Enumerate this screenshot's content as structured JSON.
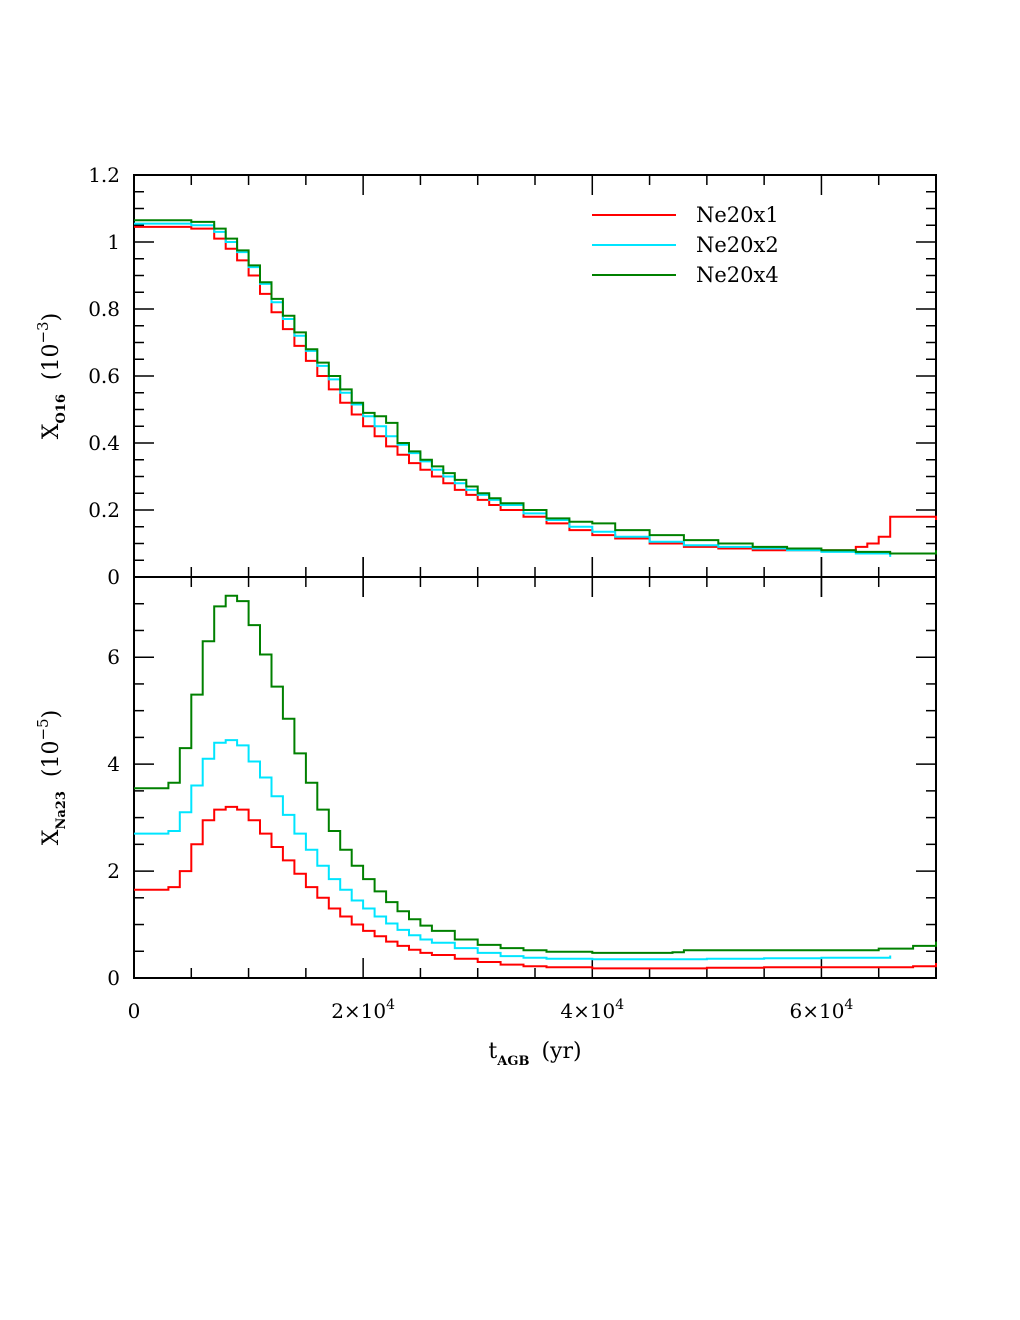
{
  "chart_data": [
    {
      "type": "line",
      "panel": "top",
      "ylabel": {
        "main": "X",
        "sub": "O16",
        "unit": "(10",
        "exp": "−3",
        "close": ")"
      },
      "xlim": [
        0,
        70000
      ],
      "ylim": [
        0,
        1.2
      ],
      "y_ticks": [
        0,
        0.2,
        0.4,
        0.6,
        0.8,
        1,
        1.2
      ],
      "y_tick_labels": [
        "0",
        "0.2",
        "0.4",
        "0.6",
        "0.8",
        "1",
        "1.2"
      ],
      "legend": {
        "placement": "top-right"
      },
      "series": [
        {
          "name": "Ne20x1",
          "color": "#ff0000",
          "x": [
            0,
            3000,
            5000,
            7000,
            8000,
            9000,
            10000,
            11000,
            12000,
            13000,
            14000,
            15000,
            16000,
            17000,
            18000,
            19000,
            20000,
            21000,
            22000,
            23000,
            24000,
            25000,
            26000,
            27000,
            28000,
            29000,
            30000,
            31000,
            32000,
            34000,
            36000,
            38000,
            40000,
            42000,
            45000,
            48000,
            51000,
            54000,
            57000,
            60000,
            62000,
            63000,
            64000,
            65000,
            66000,
            66000,
            68000,
            70000
          ],
          "y": [
            1.045,
            1.045,
            1.04,
            1.01,
            0.98,
            0.945,
            0.9,
            0.845,
            0.79,
            0.74,
            0.69,
            0.645,
            0.6,
            0.56,
            0.52,
            0.485,
            0.45,
            0.42,
            0.39,
            0.365,
            0.34,
            0.32,
            0.3,
            0.28,
            0.26,
            0.245,
            0.23,
            0.215,
            0.2,
            0.18,
            0.16,
            0.14,
            0.125,
            0.115,
            0.1,
            0.09,
            0.085,
            0.08,
            0.08,
            0.08,
            0.08,
            0.09,
            0.1,
            0.12,
            0.12,
            0.18,
            0.18,
            0.17
          ]
        },
        {
          "name": "Ne20x2",
          "color": "#00e5ff",
          "x": [
            0,
            3000,
            5000,
            7000,
            8000,
            9000,
            10000,
            11000,
            12000,
            13000,
            14000,
            15000,
            16000,
            17000,
            18000,
            19000,
            20000,
            21000,
            22000,
            23000,
            24000,
            25000,
            26000,
            27000,
            28000,
            29000,
            30000,
            31000,
            32000,
            34000,
            36000,
            38000,
            40000,
            42000,
            45000,
            48000,
            51000,
            54000,
            57000,
            60000,
            63000,
            66000
          ],
          "y": [
            1.055,
            1.055,
            1.05,
            1.03,
            1.0,
            0.97,
            0.925,
            0.875,
            0.82,
            0.77,
            0.72,
            0.675,
            0.63,
            0.59,
            0.55,
            0.515,
            0.48,
            0.45,
            0.42,
            0.395,
            0.37,
            0.345,
            0.32,
            0.3,
            0.28,
            0.26,
            0.245,
            0.23,
            0.215,
            0.19,
            0.17,
            0.15,
            0.135,
            0.12,
            0.105,
            0.095,
            0.09,
            0.085,
            0.08,
            0.075,
            0.07,
            0.06
          ]
        },
        {
          "name": "Ne20x4",
          "color": "#008000",
          "x": [
            0,
            3000,
            5000,
            7000,
            8000,
            9000,
            10000,
            11000,
            12000,
            13000,
            14000,
            15000,
            16000,
            17000,
            18000,
            19000,
            20000,
            21000,
            22000,
            23000,
            24000,
            25000,
            26000,
            27000,
            28000,
            29000,
            30000,
            31000,
            32000,
            34000,
            36000,
            38000,
            40000,
            42000,
            45000,
            48000,
            51000,
            54000,
            57000,
            60000,
            63000,
            66000,
            68000,
            70000
          ],
          "y": [
            1.065,
            1.065,
            1.06,
            1.04,
            1.01,
            0.975,
            0.93,
            0.88,
            0.83,
            0.78,
            0.73,
            0.68,
            0.64,
            0.6,
            0.56,
            0.52,
            0.49,
            0.48,
            0.46,
            0.4,
            0.375,
            0.35,
            0.33,
            0.31,
            0.29,
            0.27,
            0.25,
            0.235,
            0.22,
            0.2,
            0.175,
            0.165,
            0.16,
            0.14,
            0.125,
            0.11,
            0.1,
            0.09,
            0.085,
            0.08,
            0.075,
            0.07,
            0.07,
            0.08
          ]
        }
      ]
    },
    {
      "type": "line",
      "panel": "bottom",
      "xlabel": {
        "main": "t",
        "sub": "AGB",
        "unit": "(yr)"
      },
      "ylabel": {
        "main": "X",
        "sub": "Na23",
        "unit": "(10",
        "exp": "−5",
        "close": ")"
      },
      "xlim": [
        0,
        70000
      ],
      "ylim": [
        0,
        7.5
      ],
      "x_ticks": [
        0,
        20000,
        40000,
        60000
      ],
      "x_tick_labels": [
        {
          "base": "0",
          "exp": ""
        },
        {
          "base": "2×10",
          "exp": "4"
        },
        {
          "base": "4×10",
          "exp": "4"
        },
        {
          "base": "6×10",
          "exp": "4"
        }
      ],
      "y_ticks": [
        0,
        2,
        4,
        6
      ],
      "y_tick_labels": [
        "0",
        "2",
        "4",
        "6"
      ],
      "series": [
        {
          "name": "Ne20x1",
          "color": "#ff0000",
          "x": [
            0,
            1000,
            3000,
            4000,
            5000,
            6000,
            7000,
            8000,
            9000,
            10000,
            11000,
            12000,
            13000,
            14000,
            15000,
            16000,
            17000,
            18000,
            19000,
            20000,
            21000,
            22000,
            23000,
            24000,
            25000,
            26000,
            28000,
            30000,
            32000,
            34000,
            36000,
            40000,
            45000,
            50000,
            55000,
            60000,
            65000,
            68000,
            70000
          ],
          "y": [
            1.65,
            1.65,
            1.7,
            2.0,
            2.5,
            2.95,
            3.15,
            3.2,
            3.15,
            2.95,
            2.7,
            2.45,
            2.2,
            1.95,
            1.7,
            1.5,
            1.3,
            1.15,
            1.0,
            0.88,
            0.78,
            0.68,
            0.6,
            0.53,
            0.47,
            0.43,
            0.36,
            0.3,
            0.25,
            0.22,
            0.2,
            0.18,
            0.18,
            0.19,
            0.2,
            0.2,
            0.2,
            0.22,
            0.28
          ]
        },
        {
          "name": "Ne20x2",
          "color": "#00e5ff",
          "x": [
            0,
            1000,
            3000,
            4000,
            5000,
            6000,
            7000,
            8000,
            9000,
            10000,
            11000,
            12000,
            13000,
            14000,
            15000,
            16000,
            17000,
            18000,
            19000,
            20000,
            21000,
            22000,
            23000,
            24000,
            25000,
            26000,
            28000,
            30000,
            32000,
            34000,
            36000,
            40000,
            45000,
            50000,
            55000,
            60000,
            66000
          ],
          "y": [
            2.7,
            2.7,
            2.75,
            3.1,
            3.6,
            4.1,
            4.4,
            4.45,
            4.35,
            4.05,
            3.75,
            3.4,
            3.05,
            2.7,
            2.4,
            2.1,
            1.85,
            1.65,
            1.45,
            1.3,
            1.15,
            1.02,
            0.9,
            0.8,
            0.72,
            0.66,
            0.56,
            0.47,
            0.41,
            0.38,
            0.36,
            0.35,
            0.35,
            0.36,
            0.37,
            0.38,
            0.42
          ]
        },
        {
          "name": "Ne20x4",
          "color": "#008000",
          "x": [
            0,
            1000,
            3000,
            4000,
            5000,
            6000,
            7000,
            8000,
            9000,
            10000,
            11000,
            12000,
            13000,
            14000,
            15000,
            16000,
            17000,
            18000,
            19000,
            20000,
            21000,
            22000,
            23000,
            24000,
            25000,
            26000,
            28000,
            30000,
            32000,
            34000,
            36000,
            40000,
            45000,
            47000,
            48000,
            50000,
            55000,
            60000,
            65000,
            68000,
            70000
          ],
          "y": [
            3.55,
            3.55,
            3.65,
            4.3,
            5.3,
            6.3,
            6.95,
            7.15,
            7.05,
            6.6,
            6.05,
            5.45,
            4.85,
            4.2,
            3.65,
            3.15,
            2.75,
            2.4,
            2.1,
            1.85,
            1.62,
            1.42,
            1.25,
            1.1,
            0.98,
            0.88,
            0.72,
            0.62,
            0.56,
            0.52,
            0.49,
            0.47,
            0.47,
            0.48,
            0.52,
            0.52,
            0.52,
            0.52,
            0.55,
            0.6,
            0.68
          ]
        }
      ]
    }
  ]
}
